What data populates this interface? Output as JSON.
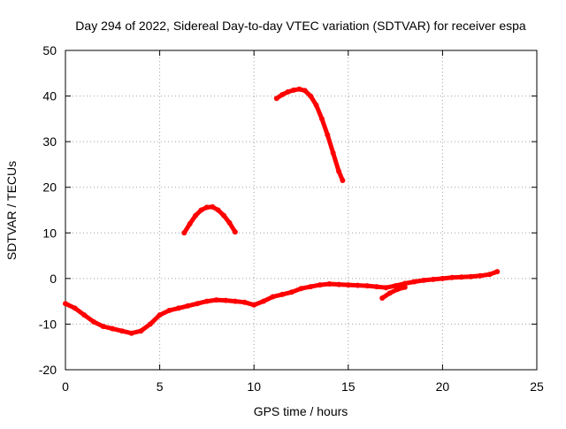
{
  "chart_data": {
    "type": "line",
    "title": "Day 294 of 2022, Sidereal Day-to-day VTEC variation (SDTVAR) for receiver espa",
    "xlabel": "GPS time / hours",
    "ylabel": "SDTVAR / TECUs",
    "xlim": [
      0,
      25
    ],
    "ylim": [
      -20,
      50
    ],
    "xticks": [
      0,
      5,
      10,
      15,
      20,
      25
    ],
    "yticks": [
      -20,
      -10,
      0,
      10,
      20,
      30,
      40,
      50
    ],
    "grid": true,
    "legend": "none",
    "line_color": "#ff0000",
    "series": [
      {
        "name": "main-trace",
        "x": [
          0,
          0.5,
          1,
          1.5,
          2,
          2.5,
          3,
          3.5,
          4,
          4.5,
          5,
          5.5,
          6,
          6.5,
          7,
          7.5,
          8,
          8.5,
          9,
          9.5,
          10,
          10.5,
          11,
          11.5,
          12,
          12.5,
          13,
          13.5,
          14,
          14.5,
          15,
          15.5,
          16,
          16.5,
          17,
          17.5,
          18,
          18.5,
          19,
          19.5,
          20,
          20.5,
          21,
          21.5,
          22,
          22.5,
          22.9
        ],
        "y": [
          -5.5,
          -6.5,
          -8,
          -9.5,
          -10.5,
          -11,
          -11.5,
          -12,
          -11.5,
          -10,
          -8,
          -7,
          -6.5,
          -6,
          -5.5,
          -5,
          -4.7,
          -4.8,
          -5,
          -5.2,
          -5.8,
          -5,
          -4,
          -3.5,
          -3,
          -2.2,
          -1.8,
          -1.4,
          -1.2,
          -1.3,
          -1.4,
          -1.5,
          -1.6,
          -1.8,
          -2,
          -1.6,
          -1.1,
          -0.7,
          -0.4,
          -0.2,
          0,
          0.2,
          0.3,
          0.4,
          0.6,
          0.9,
          1.5
        ]
      },
      {
        "name": "arc-trace",
        "x": [
          6.3,
          6.6,
          6.9,
          7.2,
          7.5,
          7.8,
          8.1,
          8.4,
          8.7,
          9.0
        ],
        "y": [
          10,
          12,
          13.8,
          15,
          15.6,
          15.7,
          15,
          13.8,
          12.2,
          10.2
        ]
      },
      {
        "name": "high-trace",
        "x": [
          11.2,
          11.5,
          11.8,
          12.1,
          12.4,
          12.7,
          13.0,
          13.3,
          13.6,
          13.9,
          14.2,
          14.5,
          14.7
        ],
        "y": [
          39.5,
          40.3,
          40.9,
          41.3,
          41.5,
          41.2,
          40,
          38,
          35,
          31.5,
          27.5,
          23.5,
          21.5
        ]
      },
      {
        "name": "late-segment",
        "x": [
          16.8,
          17.2,
          17.6,
          18.0
        ],
        "y": [
          -4.3,
          -3.2,
          -2.4,
          -1.9
        ]
      }
    ]
  }
}
